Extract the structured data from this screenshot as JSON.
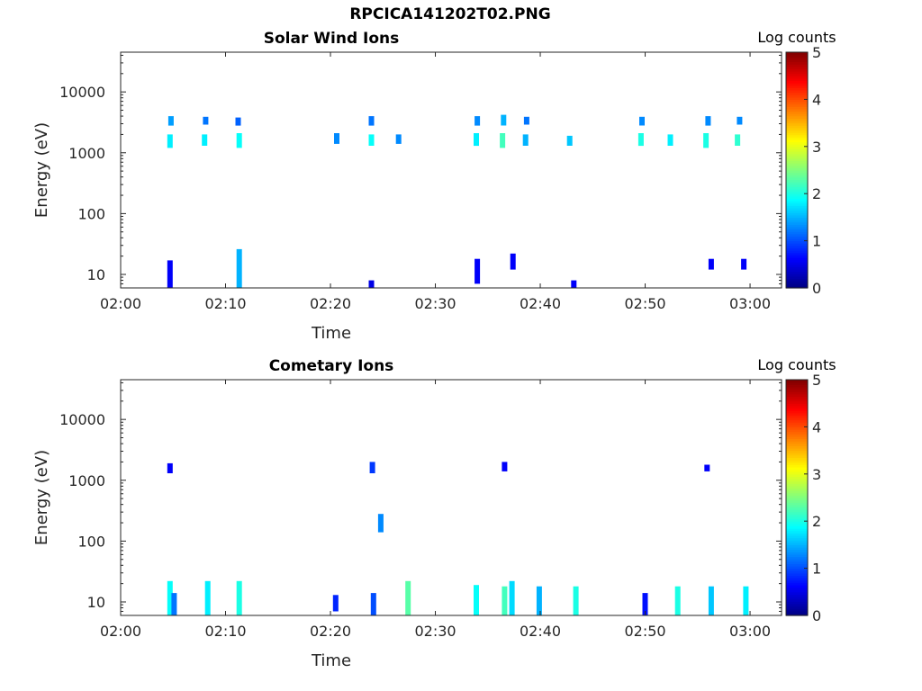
{
  "figure": {
    "filename": "RPCICA141202T02.PNG"
  },
  "chart_data": [
    {
      "type": "heatmap",
      "title": "Solar Wind Ions",
      "xlabel": "Time",
      "ylabel": "Energy (eV)",
      "x_ticks": [
        "02:00",
        "02:10",
        "02:20",
        "02:30",
        "02:40",
        "02:50",
        "03:00"
      ],
      "xlim": [
        "02:00",
        "03:03"
      ],
      "y_ticks": [
        10,
        100,
        1000,
        10000
      ],
      "ylim": [
        6,
        45000
      ],
      "y_scale": "log",
      "colorbar": {
        "label": "Log counts",
        "ticks": [
          0,
          1,
          2,
          3,
          4,
          5
        ],
        "range": [
          0,
          5
        ],
        "colormap": "jet"
      },
      "clusters": [
        {
          "t": "02:04.7",
          "e_lo": 1200,
          "e_hi": 2000,
          "v": 1.8
        },
        {
          "t": "02:04.8",
          "e_lo": 2800,
          "e_hi": 4000,
          "v": 1.4
        },
        {
          "t": "02:08.0",
          "e_lo": 1300,
          "e_hi": 2000,
          "v": 1.8
        },
        {
          "t": "02:08.1",
          "e_lo": 2900,
          "e_hi": 3900,
          "v": 1.2
        },
        {
          "t": "02:11.3",
          "e_lo": 1200,
          "e_hi": 2100,
          "v": 1.9
        },
        {
          "t": "02:11.2",
          "e_lo": 2800,
          "e_hi": 3800,
          "v": 1.1
        },
        {
          "t": "02:20.6",
          "e_lo": 1400,
          "e_hi": 2100,
          "v": 1.3
        },
        {
          "t": "02:23.9",
          "e_lo": 1300,
          "e_hi": 2000,
          "v": 1.9
        },
        {
          "t": "02:23.9",
          "e_lo": 2800,
          "e_hi": 4000,
          "v": 1.2
        },
        {
          "t": "02:26.5",
          "e_lo": 1400,
          "e_hi": 2000,
          "v": 1.3
        },
        {
          "t": "02:33.9",
          "e_lo": 1300,
          "e_hi": 2100,
          "v": 1.8
        },
        {
          "t": "02:34.0",
          "e_lo": 2800,
          "e_hi": 4000,
          "v": 1.3
        },
        {
          "t": "02:36.4",
          "e_lo": 1200,
          "e_hi": 2100,
          "v": 2.2
        },
        {
          "t": "02:36.5",
          "e_lo": 2800,
          "e_hi": 4200,
          "v": 1.5
        },
        {
          "t": "02:38.6",
          "e_lo": 1300,
          "e_hi": 2000,
          "v": 1.5
        },
        {
          "t": "02:38.7",
          "e_lo": 2900,
          "e_hi": 3900,
          "v": 1.2
        },
        {
          "t": "02:42.8",
          "e_lo": 1300,
          "e_hi": 1900,
          "v": 1.6
        },
        {
          "t": "02:49.6",
          "e_lo": 1300,
          "e_hi": 2100,
          "v": 2.0
        },
        {
          "t": "02:49.7",
          "e_lo": 2800,
          "e_hi": 3900,
          "v": 1.3
        },
        {
          "t": "02:52.4",
          "e_lo": 1300,
          "e_hi": 2000,
          "v": 1.8
        },
        {
          "t": "02:55.8",
          "e_lo": 1200,
          "e_hi": 2100,
          "v": 2.0
        },
        {
          "t": "02:56.0",
          "e_lo": 2800,
          "e_hi": 4000,
          "v": 1.3
        },
        {
          "t": "02:58.8",
          "e_lo": 1300,
          "e_hi": 2000,
          "v": 2.1
        },
        {
          "t": "02:59.0",
          "e_lo": 2900,
          "e_hi": 3900,
          "v": 1.3
        },
        {
          "t": "02:04.7",
          "e_lo": 6,
          "e_hi": 17,
          "v": 0.6
        },
        {
          "t": "02:11.3",
          "e_lo": 6,
          "e_hi": 26,
          "v": 1.5
        },
        {
          "t": "02:23.9",
          "e_lo": 6,
          "e_hi": 8,
          "v": 0.5
        },
        {
          "t": "02:34.0",
          "e_lo": 7,
          "e_hi": 18,
          "v": 0.6
        },
        {
          "t": "02:37.4",
          "e_lo": 12,
          "e_hi": 22,
          "v": 0.6
        },
        {
          "t": "02:43.2",
          "e_lo": 6,
          "e_hi": 8,
          "v": 0.6
        },
        {
          "t": "02:56.3",
          "e_lo": 12,
          "e_hi": 18,
          "v": 0.6
        },
        {
          "t": "02:59.4",
          "e_lo": 12,
          "e_hi": 18,
          "v": 0.6
        }
      ]
    },
    {
      "type": "heatmap",
      "title": "Cometary Ions",
      "xlabel": "Time",
      "ylabel": "Energy (eV)",
      "x_ticks": [
        "02:00",
        "02:10",
        "02:20",
        "02:30",
        "02:40",
        "02:50",
        "03:00"
      ],
      "xlim": [
        "02:00",
        "03:03"
      ],
      "y_ticks": [
        10,
        100,
        1000,
        10000
      ],
      "ylim": [
        6,
        45000
      ],
      "y_scale": "log",
      "colorbar": {
        "label": "Log counts",
        "ticks": [
          0,
          1,
          2,
          3,
          4,
          5
        ],
        "range": [
          0,
          5
        ],
        "colormap": "jet"
      },
      "clusters": [
        {
          "t": "02:04.7",
          "e_lo": 6,
          "e_hi": 22,
          "v": 1.9
        },
        {
          "t": "02:05.1",
          "e_lo": 6,
          "e_hi": 14,
          "v": 1.2
        },
        {
          "t": "02:08.3",
          "e_lo": 6,
          "e_hi": 22,
          "v": 1.8
        },
        {
          "t": "02:11.3",
          "e_lo": 6,
          "e_hi": 22,
          "v": 2.0
        },
        {
          "t": "02:20.5",
          "e_lo": 7,
          "e_hi": 13,
          "v": 0.8
        },
        {
          "t": "02:24.1",
          "e_lo": 6,
          "e_hi": 14,
          "v": 1.0
        },
        {
          "t": "02:27.4",
          "e_lo": 6,
          "e_hi": 22,
          "v": 2.3
        },
        {
          "t": "02:33.9",
          "e_lo": 6,
          "e_hi": 19,
          "v": 1.9
        },
        {
          "t": "02:36.6",
          "e_lo": 6,
          "e_hi": 18,
          "v": 2.2
        },
        {
          "t": "02:37.3",
          "e_lo": 6,
          "e_hi": 22,
          "v": 1.7
        },
        {
          "t": "02:39.9",
          "e_lo": 6,
          "e_hi": 18,
          "v": 1.5
        },
        {
          "t": "02:43.4",
          "e_lo": 6,
          "e_hi": 18,
          "v": 2.0
        },
        {
          "t": "02:50.0",
          "e_lo": 6,
          "e_hi": 14,
          "v": 0.7
        },
        {
          "t": "02:53.1",
          "e_lo": 6,
          "e_hi": 18,
          "v": 2.0
        },
        {
          "t": "02:56.3",
          "e_lo": 6,
          "e_hi": 18,
          "v": 1.6
        },
        {
          "t": "02:59.6",
          "e_lo": 6,
          "e_hi": 18,
          "v": 1.8
        },
        {
          "t": "02:04.7",
          "e_lo": 1300,
          "e_hi": 1900,
          "v": 0.6
        },
        {
          "t": "02:24.0",
          "e_lo": 1300,
          "e_hi": 2000,
          "v": 0.9
        },
        {
          "t": "02:36.6",
          "e_lo": 1400,
          "e_hi": 2000,
          "v": 0.6
        },
        {
          "t": "02:55.9",
          "e_lo": 1400,
          "e_hi": 1800,
          "v": 0.6
        },
        {
          "t": "02:24.8",
          "e_lo": 140,
          "e_hi": 280,
          "v": 1.3
        }
      ]
    }
  ]
}
